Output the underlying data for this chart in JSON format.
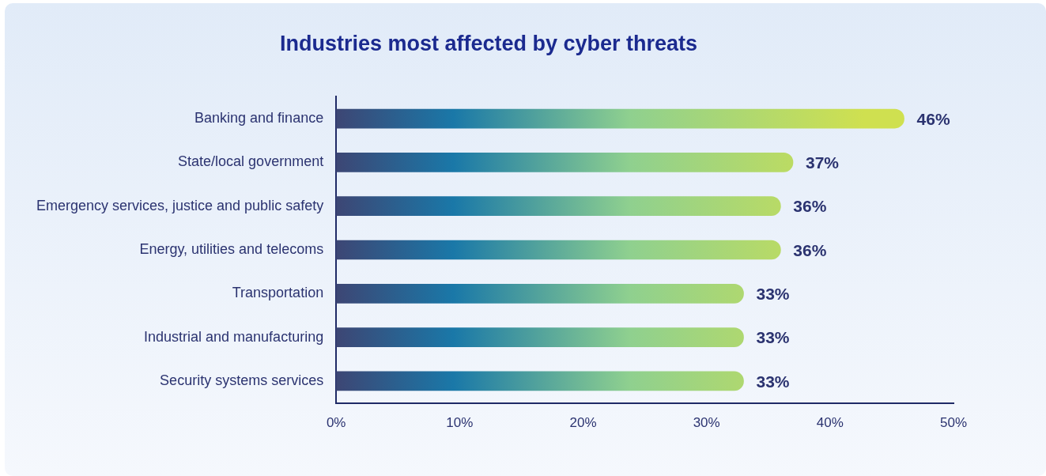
{
  "chart_data": {
    "type": "bar",
    "orientation": "horizontal",
    "title": "Industries most affected by cyber threats",
    "categories": [
      "Banking and finance",
      "State/local government",
      "Emergency services, justice and public safety",
      "Energy, utilities and telecoms",
      "Transportation",
      "Industrial and manufacturing",
      "Security systems services"
    ],
    "values": [
      46,
      37,
      36,
      36,
      33,
      33,
      33
    ],
    "value_labels": [
      "46%",
      "37%",
      "36%",
      "36%",
      "33%",
      "33%",
      "33%"
    ],
    "color": "#1a78a8",
    "xlim": [
      0,
      50
    ],
    "xticks": [
      {
        "value": 0,
        "label": "0%"
      },
      {
        "value": 10,
        "label": "10%"
      },
      {
        "value": 20,
        "label": "20%"
      },
      {
        "value": 30,
        "label": "30%"
      },
      {
        "value": 40,
        "label": "40%"
      },
      {
        "value": 50,
        "label": "50%"
      }
    ],
    "grid": false,
    "legend": false
  }
}
